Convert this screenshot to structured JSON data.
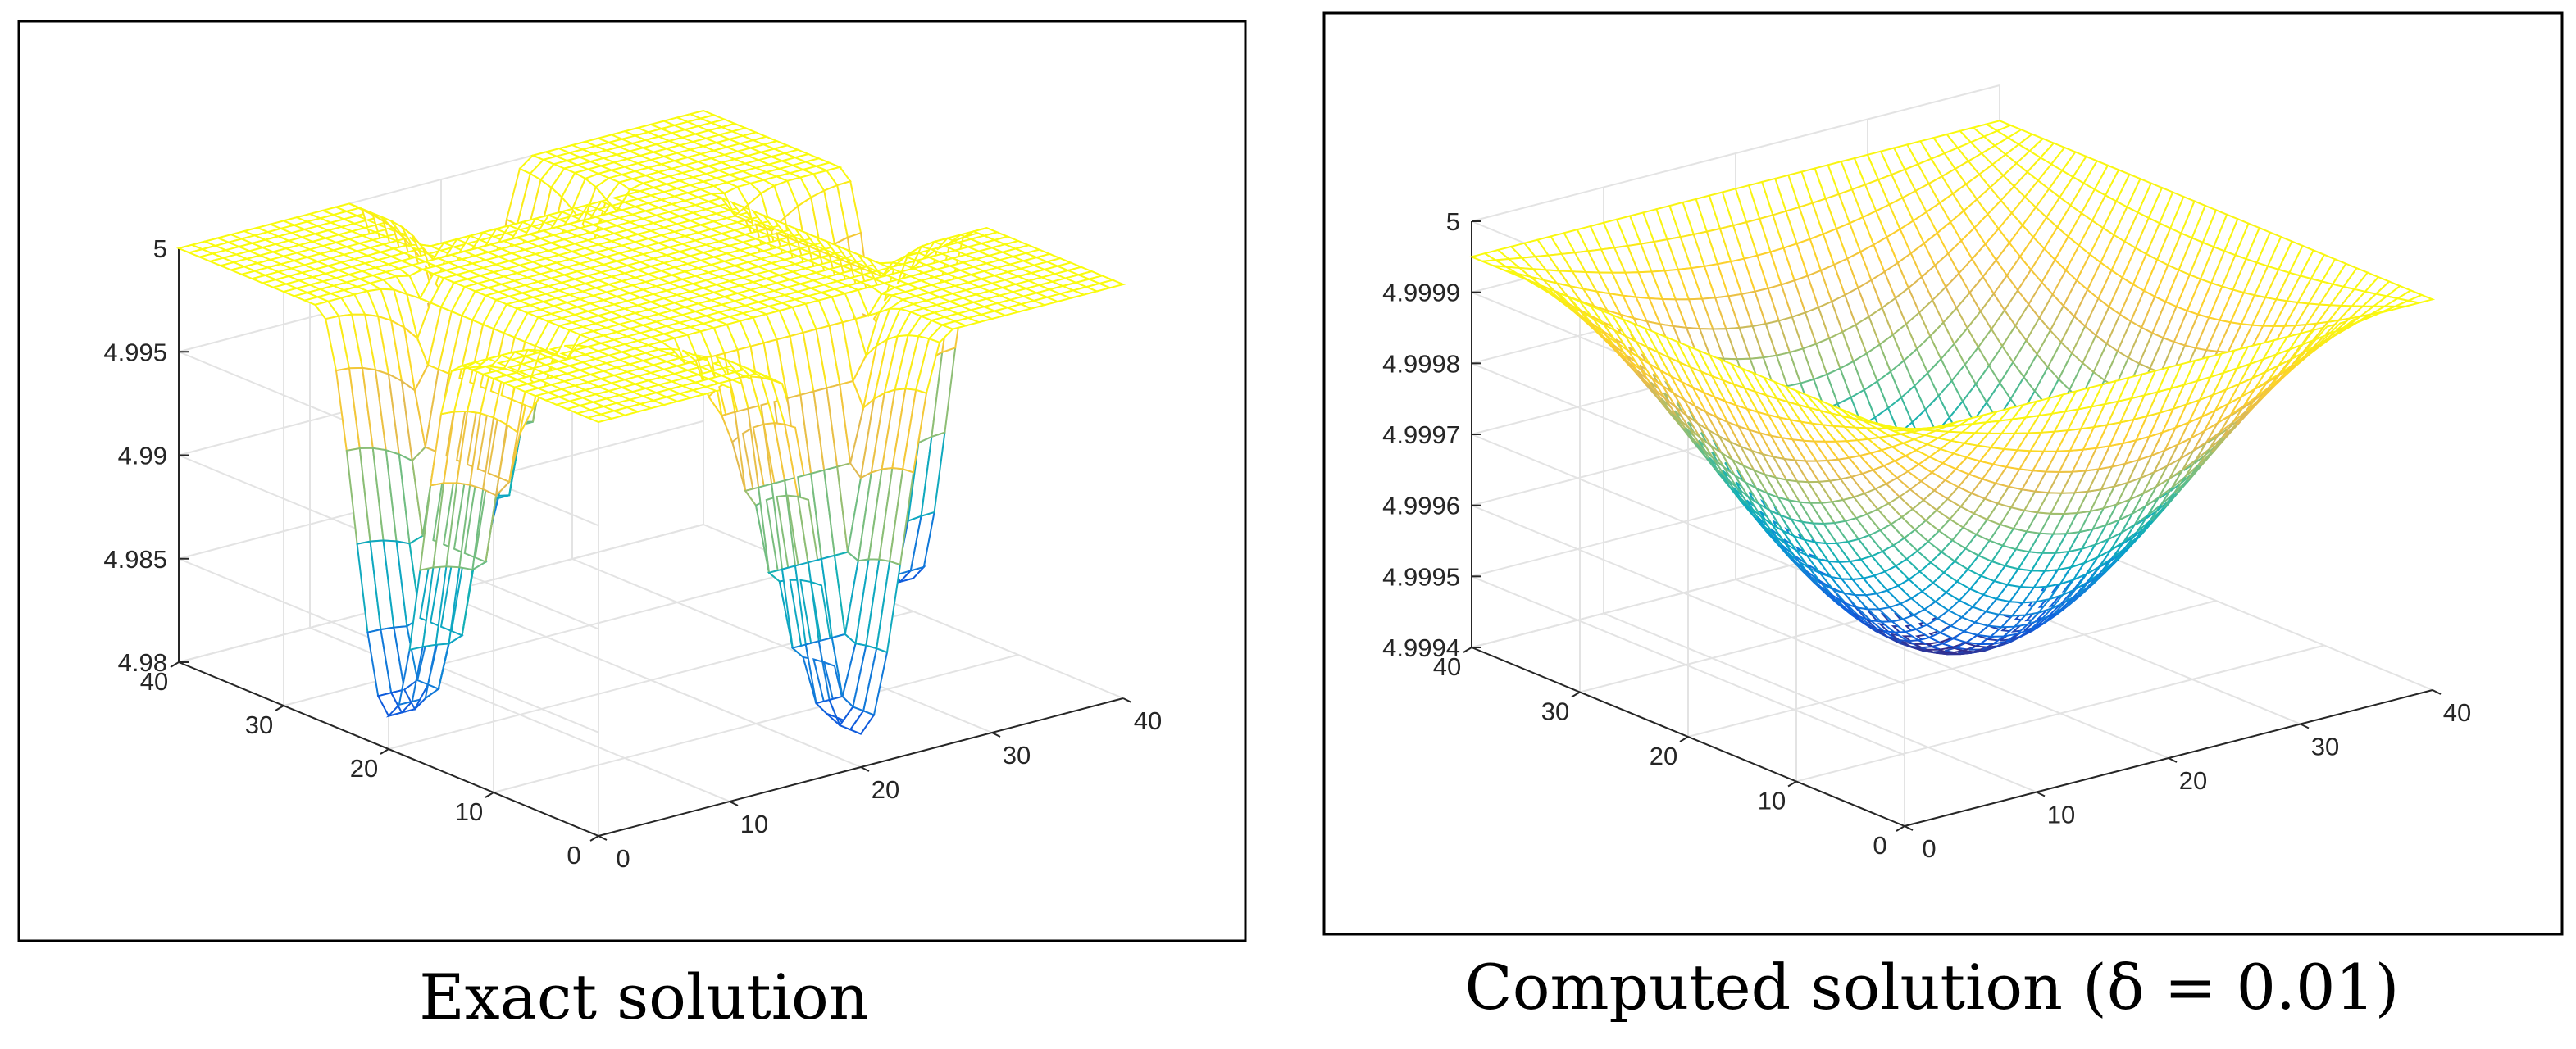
{
  "figure": {
    "captions": {
      "left": "Exact solution",
      "right": "Computed solution (δ = 0.01)"
    }
  },
  "chart_data": [
    {
      "type": "surface",
      "id": "exact",
      "title": "Exact solution",
      "xlim": [
        0,
        40
      ],
      "ylim": [
        0,
        40
      ],
      "zlim": [
        4.98,
        5
      ],
      "x_ticks": [
        "0",
        "10",
        "20",
        "30",
        "40"
      ],
      "y_ticks": [
        "0",
        "10",
        "20",
        "30",
        "40"
      ],
      "z_ticks": [
        "4.98",
        "4.985",
        "4.99",
        "4.995",
        "5"
      ],
      "grid": true,
      "colormap": "parula",
      "mesh_size": 41,
      "surface_description": "plateau at z≈5 near the four corners and central square, dips to ≈4.98 along the region between",
      "z_min": 4.98,
      "z_max": 5
    },
    {
      "type": "surface",
      "id": "computed",
      "title": "Computed solution (δ = 0.01)",
      "xlim": [
        0,
        40
      ],
      "ylim": [
        0,
        40
      ],
      "zlim": [
        4.9994,
        5
      ],
      "x_ticks": [
        "0",
        "10",
        "20",
        "30",
        "40"
      ],
      "y_ticks": [
        "0",
        "10",
        "20",
        "30",
        "40"
      ],
      "z_ticks": [
        "4.9994",
        "4.9995",
        "4.9996",
        "4.9997",
        "4.9998",
        "4.9999",
        "5"
      ],
      "grid": true,
      "colormap": "parula",
      "mesh_size": 41,
      "surface_description": "bowl shape, corners high (≈4.99995), center low (≈4.99943)",
      "z_min": 4.99943,
      "z_max": 4.99995
    }
  ]
}
